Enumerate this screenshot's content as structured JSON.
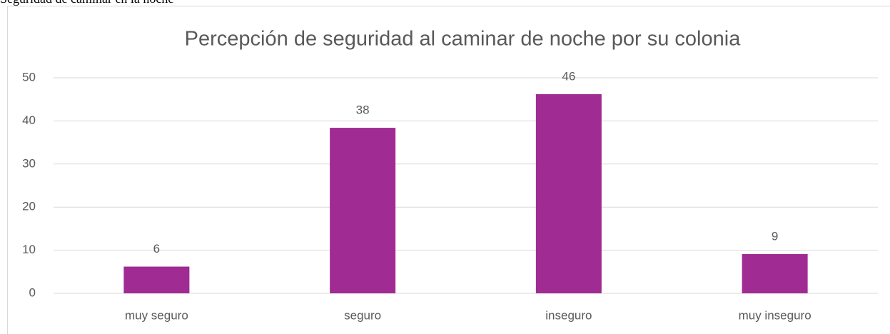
{
  "caption": "Seguridad de caminar en la noche",
  "chart_data": {
    "type": "bar",
    "title": "Percepción de seguridad al caminar de noche por su colonia",
    "categories": [
      "muy seguro",
      "seguro",
      "inseguro",
      "muy inseguro"
    ],
    "values": [
      6.2,
      38.4,
      46.2,
      9.1
    ],
    "value_labels": [
      "6",
      "38",
      "46",
      "9"
    ],
    "color": "#a02b93",
    "ylim": [
      0,
      50
    ],
    "yticks": [
      0,
      10,
      20,
      30,
      40,
      50
    ],
    "grid": true
  }
}
